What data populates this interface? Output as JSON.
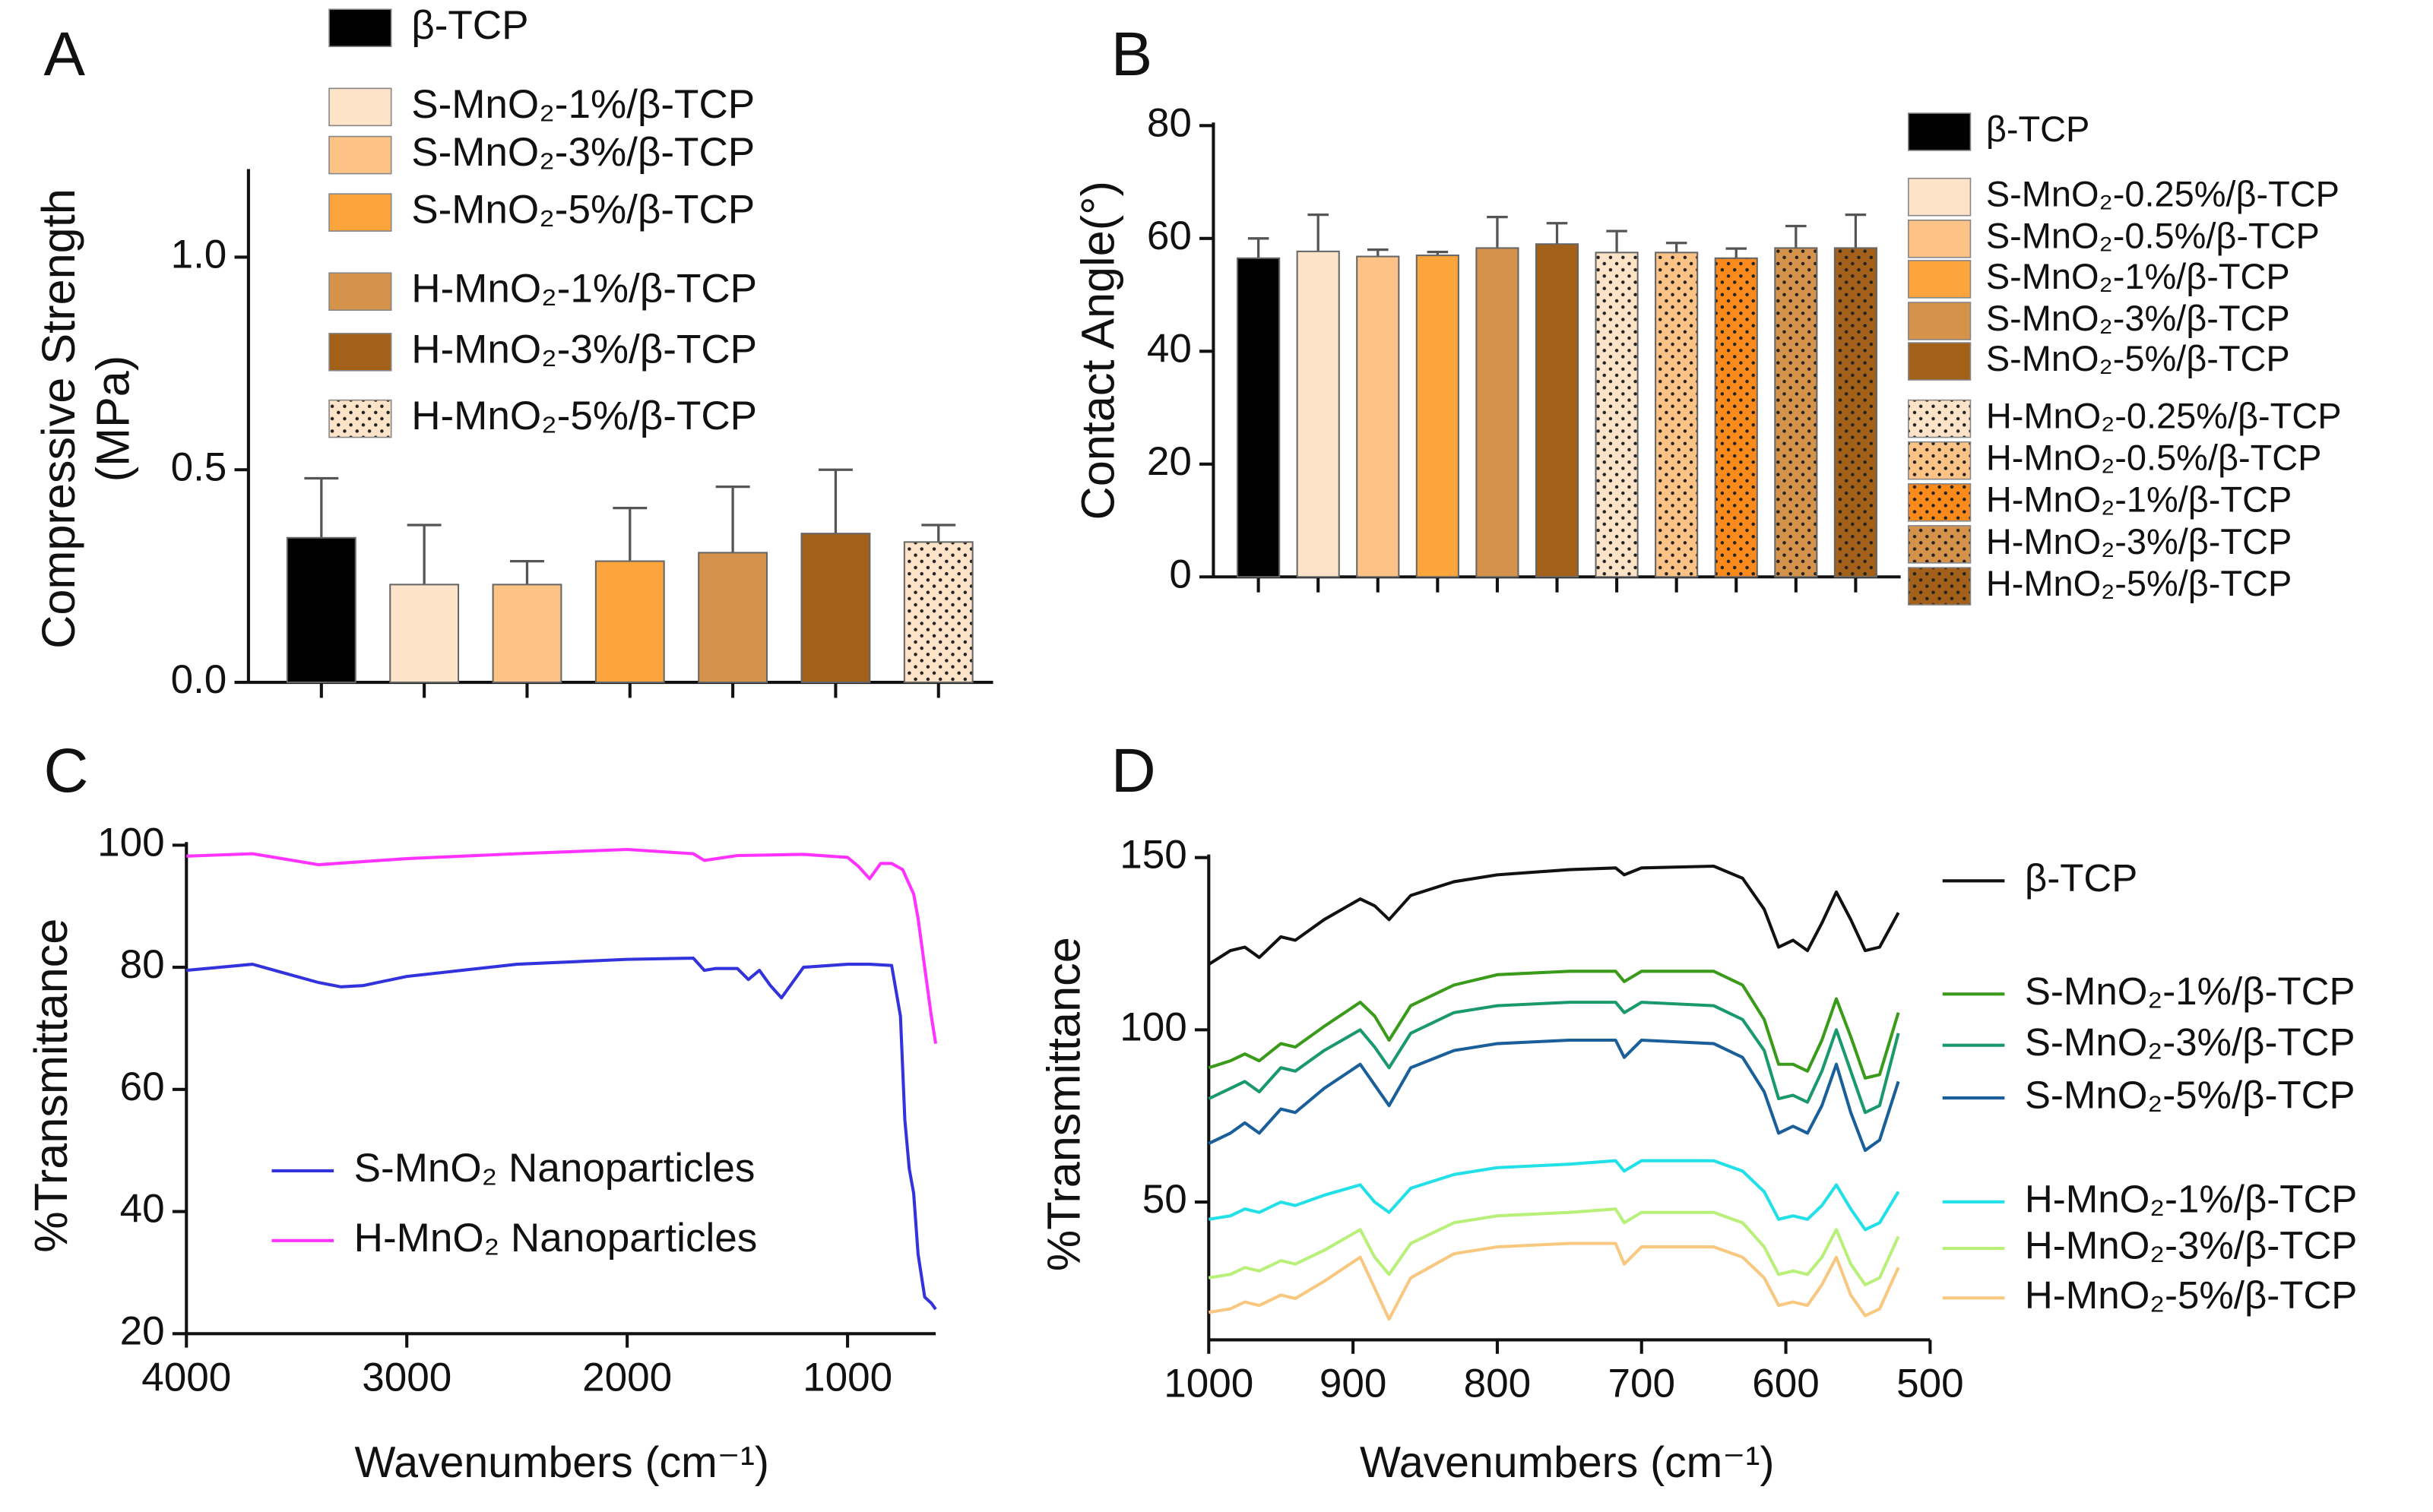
{
  "chart_data": [
    {
      "type": "bar",
      "label": "A",
      "ylabel": [
        "Compressive Strength",
        "(MPa)"
      ],
      "ylim": [
        0,
        1.2
      ],
      "yticks": [
        {
          "value": 0,
          "label": "0.0"
        },
        0.5,
        {
          "value": 1,
          "label": "1.0"
        }
      ],
      "series": [
        {
          "name": "β-TCP",
          "color": "#000000",
          "values": [
            0.34
          ],
          "errors": [
            0.14
          ]
        },
        {
          "name": "S-MnO₂-1%/β-TCP",
          "color": "#fde3c8",
          "values": [
            0.23
          ],
          "errors": [
            0.14
          ]
        },
        {
          "name": "S-MnO₂-3%/β-TCP",
          "color": "#fdc386",
          "values": [
            0.23
          ],
          "errors": [
            0.055
          ]
        },
        {
          "name": "S-MnO₂-5%/β-TCP",
          "color": "#fba53c",
          "values": [
            0.285
          ],
          "errors": [
            0.125
          ]
        },
        {
          "name": "H-MnO₂-1%/β-TCP",
          "color": "#d4924a",
          "values": [
            0.305
          ],
          "errors": [
            0.155
          ]
        },
        {
          "name": "H-MnO₂-3%/β-TCP",
          "color": "#a26019",
          "values": [
            0.35
          ],
          "errors": [
            0.15
          ]
        },
        {
          "name": "H-MnO₂-5%/β-TCP",
          "color": "#fde3c8",
          "pattern": "dots",
          "values": [
            0.33
          ],
          "errors": [
            0.04
          ]
        }
      ]
    },
    {
      "type": "bar",
      "label": "B",
      "ylabel": [
        "Contact Angle(°)"
      ],
      "ylim": [
        0,
        80
      ],
      "yticks": [
        0,
        20,
        40,
        60,
        80
      ],
      "series": [
        {
          "name": "β-TCP",
          "color": "#000000",
          "values": [
            56.5
          ],
          "errors": [
            3.5
          ]
        },
        {
          "name": "S-MnO₂-0.25%/β-TCP",
          "color": "#fde3c8",
          "values": [
            57.7
          ],
          "errors": [
            6.5
          ]
        },
        {
          "name": "S-MnO₂-0.5%/β-TCP",
          "color": "#fdc386",
          "values": [
            56.8
          ],
          "errors": [
            1.2
          ]
        },
        {
          "name": "S-MnO₂-1%/β-TCP",
          "color": "#fba53c",
          "values": [
            57
          ],
          "errors": [
            0.6
          ]
        },
        {
          "name": "S-MnO₂-3%/β-TCP",
          "color": "#d4924a",
          "values": [
            58.3
          ],
          "errors": [
            5.5
          ]
        },
        {
          "name": "S-MnO₂-5%/β-TCP",
          "color": "#a26019",
          "values": [
            59
          ],
          "errors": [
            3.7
          ]
        },
        {
          "name": "H-MnO₂-0.25%/β-TCP",
          "color": "#fde3c8",
          "pattern": "dots",
          "values": [
            57.5
          ],
          "errors": [
            3.8
          ]
        },
        {
          "name": "H-MnO₂-0.5%/β-TCP",
          "color": "#fdc386",
          "pattern": "dots",
          "values": [
            57.5
          ],
          "errors": [
            1.7
          ]
        },
        {
          "name": "H-MnO₂-1%/β-TCP",
          "color": "#fb8a1c",
          "pattern": "dots",
          "values": [
            56.5
          ],
          "errors": [
            1.7
          ]
        },
        {
          "name": "H-MnO₂-3%/β-TCP",
          "color": "#d4924a",
          "pattern": "dots",
          "values": [
            58.3
          ],
          "errors": [
            3.9
          ]
        },
        {
          "name": "H-MnO₂-5%/β-TCP",
          "color": "#a26019",
          "pattern": "dots",
          "values": [
            58.3
          ],
          "errors": [
            5.9
          ]
        }
      ]
    },
    {
      "type": "line",
      "label": "C",
      "ylabel": [
        "%Transmittance"
      ],
      "xlabel": "Wavenumbers (cm⁻¹)",
      "xlim": [
        4000,
        600
      ],
      "xticks": [
        4000,
        3000,
        2000,
        1000
      ],
      "ylim": [
        20,
        100
      ],
      "yticks": [
        20,
        40,
        60,
        80,
        100
      ],
      "series": [
        {
          "name": "S-MnO₂ Nanoparticles",
          "color": "#3333dd",
          "x": [
            4000,
            3700,
            3600,
            3400,
            3300,
            3200,
            3000,
            2500,
            2000,
            1700,
            1650,
            1600,
            1500,
            1450,
            1400,
            1350,
            1300,
            1200,
            1000,
            900,
            800,
            760,
            740,
            720,
            700,
            680,
            650,
            620,
            600
          ],
          "values": [
            79.5,
            80.5,
            79.5,
            77.5,
            76.8,
            77,
            78.5,
            80.5,
            81.3,
            81.5,
            79.5,
            79.8,
            79.8,
            78,
            79.5,
            77,
            75,
            80,
            80.5,
            80.5,
            80.3,
            72,
            55,
            47,
            43,
            33,
            26,
            25,
            24
          ]
        },
        {
          "name": "H-MnO₂ Nanoparticles",
          "color": "#ff33ff",
          "x": [
            4000,
            3700,
            3400,
            3000,
            2500,
            2000,
            1700,
            1650,
            1500,
            1200,
            1000,
            950,
            900,
            850,
            800,
            750,
            700,
            680,
            650,
            620,
            600
          ],
          "values": [
            98.2,
            98.6,
            96.8,
            97.8,
            98.6,
            99.3,
            98.6,
            97.5,
            98.3,
            98.5,
            98,
            96.5,
            94.5,
            97,
            97,
            96,
            92,
            88,
            80,
            72,
            67.5
          ]
        }
      ]
    },
    {
      "type": "line",
      "label": "D",
      "ylabel": [
        "%Transmittance"
      ],
      "xlabel": "Wavenumbers (cm⁻¹)",
      "xlim": [
        1000,
        500
      ],
      "xticks": [
        1000,
        900,
        800,
        700,
        600,
        500
      ],
      "ylim": [
        10,
        150
      ],
      "yticks": [
        50,
        100,
        150
      ],
      "x": [
        1000,
        985,
        975,
        965,
        950,
        940,
        920,
        895,
        885,
        875,
        860,
        830,
        800,
        750,
        718,
        712,
        700,
        650,
        630,
        615,
        605,
        595,
        585,
        575,
        565,
        555,
        545,
        535,
        522
      ],
      "series": [
        {
          "name": "β-TCP",
          "color": "#111111",
          "values": [
            119,
            123,
            124,
            121,
            127,
            126,
            132,
            138,
            136,
            132,
            139,
            143,
            145,
            146.5,
            147,
            145,
            147,
            147.5,
            144,
            135,
            124,
            126,
            123,
            131,
            140,
            132,
            123,
            124,
            134
          ]
        },
        {
          "name": "S-MnO₂-1%/β-TCP",
          "color": "#3a9a1a",
          "values": [
            89,
            91,
            93,
            91,
            96,
            95,
            101,
            108,
            104,
            97,
            107,
            113,
            116,
            117,
            117,
            114,
            117,
            117,
            113,
            103,
            90,
            90,
            88,
            97,
            109,
            98,
            86,
            87,
            105
          ]
        },
        {
          "name": "S-MnO₂-3%/β-TCP",
          "color": "#1a9a6a",
          "values": [
            80,
            83,
            85,
            82,
            89,
            88,
            94,
            100,
            95,
            89,
            99,
            105,
            107,
            108,
            108,
            105,
            108,
            107,
            103,
            94,
            80,
            81,
            79,
            88,
            100,
            88,
            76,
            78,
            99
          ]
        },
        {
          "name": "S-MnO₂-5%/β-TCP",
          "color": "#1a5f9a",
          "values": [
            67,
            70,
            73,
            70,
            77,
            76,
            83,
            90,
            84,
            78,
            89,
            94,
            96,
            97,
            97,
            92,
            97,
            96,
            92,
            82,
            70,
            72,
            70,
            78,
            90,
            76,
            65,
            68,
            85
          ]
        },
        {
          "name": "H-MnO₂-1%/β-TCP",
          "color": "#22e0e8",
          "values": [
            45,
            46,
            48,
            47,
            50,
            49,
            52,
            55,
            50,
            47,
            54,
            58,
            60,
            61,
            62,
            59,
            62,
            62,
            59,
            53,
            45,
            46,
            45,
            49,
            55,
            48,
            42,
            44,
            53
          ]
        },
        {
          "name": "H-MnO₂-3%/β-TCP",
          "color": "#b8f07a",
          "values": [
            28,
            29,
            31,
            30,
            33,
            32,
            36,
            42,
            34,
            29,
            38,
            44,
            46,
            47,
            48,
            44,
            47,
            47,
            44,
            37,
            29,
            30,
            29,
            34,
            42,
            32,
            26,
            28,
            40
          ]
        },
        {
          "name": "H-MnO₂-5%/β-TCP",
          "color": "#f8c880",
          "values": [
            18,
            19,
            21,
            20,
            23,
            22,
            27,
            34,
            25,
            16,
            28,
            35,
            37,
            38,
            38,
            32,
            37,
            37,
            34,
            28,
            20,
            21,
            20,
            26,
            34,
            23,
            17,
            19,
            31
          ]
        }
      ]
    }
  ]
}
